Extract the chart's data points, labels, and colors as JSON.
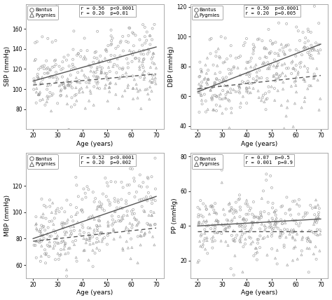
{
  "panels": [
    {
      "ylabel": "SBP (mmHg)",
      "xlabel": "Age (years)",
      "ylim": [
        60,
        185
      ],
      "yticks": [
        80,
        100,
        120,
        140,
        160
      ],
      "legend_bantus": "r = 0.56  p<0.0001",
      "legend_pygmies": "r = 0.20  p=0.01",
      "bantus_line": [
        20,
        108,
        70,
        142
      ],
      "pygmies_line": [
        20,
        104,
        70,
        115
      ]
    },
    {
      "ylabel": "DBP (mmHg)",
      "xlabel": "Age (years)",
      "ylim": [
        38,
        122
      ],
      "yticks": [
        40,
        60,
        80,
        100,
        120
      ],
      "legend_bantus": "r = 0.50  p<0.0001",
      "legend_pygmies": "r = 0.20  p=0.005",
      "bantus_line": [
        20,
        63,
        70,
        95
      ],
      "pygmies_line": [
        20,
        65,
        70,
        74
      ]
    },
    {
      "ylabel": "MBP (mmHg)",
      "xlabel": "Age (years)",
      "ylim": [
        50,
        145
      ],
      "yticks": [
        60,
        80,
        100,
        120
      ],
      "legend_bantus": "r = 0.52  p<0.0001",
      "legend_pygmies": "r = 0.20  p=0.002",
      "bantus_line": [
        20,
        80,
        70,
        112
      ],
      "pygmies_line": [
        20,
        78,
        70,
        88
      ]
    },
    {
      "ylabel": "PP (mmHg)",
      "xlabel": "Age (years)",
      "ylim": [
        10,
        82
      ],
      "yticks": [
        20,
        40,
        60,
        80
      ],
      "legend_bantus": "r = 0.07  p=0.5",
      "legend_pygmies": "r = 0.001  p=0.9",
      "bantus_line": [
        20,
        40,
        70,
        44
      ],
      "pygmies_line": [
        20,
        37,
        70,
        37
      ]
    }
  ],
  "scatter_color": "#999999",
  "line_color_bantus": "#555555",
  "line_color_pygmies": "#555555",
  "background_color": "#ffffff",
  "seed": 42,
  "scatter_params": [
    {
      "bantus": {
        "n": 200,
        "yi": 108,
        "slope": 0.68,
        "noise": 18
      },
      "pygmies": {
        "n": 130,
        "yi": 103,
        "slope": 0.22,
        "noise": 13
      }
    },
    {
      "bantus": {
        "n": 200,
        "yi": 62,
        "slope": 0.64,
        "noise": 13
      },
      "pygmies": {
        "n": 130,
        "yi": 64,
        "slope": 0.18,
        "noise": 11
      }
    },
    {
      "bantus": {
        "n": 200,
        "yi": 79,
        "slope": 0.64,
        "noise": 14
      },
      "pygmies": {
        "n": 130,
        "yi": 77,
        "slope": 0.2,
        "noise": 11
      }
    },
    {
      "bantus": {
        "n": 200,
        "yi": 40,
        "slope": 0.08,
        "noise": 10
      },
      "pygmies": {
        "n": 130,
        "yi": 37,
        "slope": 0.0,
        "noise": 9
      }
    }
  ]
}
